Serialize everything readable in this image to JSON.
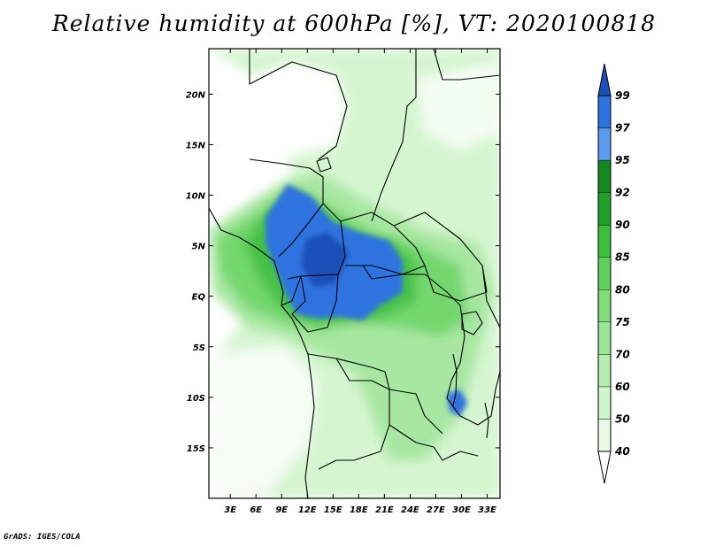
{
  "title": "Relative humidity at 600hPa [%], VT: 2020100818",
  "credit": "GrADS: IGES/COLA",
  "map": {
    "lat_ticks": [
      "20N",
      "15N",
      "10N",
      "5N",
      "EQ",
      "5S",
      "10S",
      "15S"
    ],
    "lat_values": [
      20,
      15,
      10,
      5,
      0,
      -5,
      -10,
      -15
    ],
    "lon_ticks": [
      "3E",
      "6E",
      "9E",
      "12E",
      "15E",
      "18E",
      "21E",
      "24E",
      "27E",
      "30E",
      "33E"
    ],
    "lon_values": [
      3,
      6,
      9,
      12,
      15,
      18,
      21,
      24,
      27,
      30,
      33
    ],
    "lon_range": [
      0.5,
      34.5
    ],
    "lat_range": [
      -20,
      24.5
    ]
  },
  "colorbar": {
    "labels": [
      "40",
      "50",
      "60",
      "70",
      "75",
      "80",
      "85",
      "90",
      "92",
      "95",
      "97",
      "99"
    ],
    "colors": [
      "#ffffff",
      "#e8fbe6",
      "#cff5cb",
      "#b4edaf",
      "#9be596",
      "#7fdc78",
      "#5fd15a",
      "#3ebe3d",
      "#1fa22a",
      "#13881f",
      "#5a9df0",
      "#2d73e0",
      "#1a4fb8"
    ]
  },
  "colors": {
    "ocean": "#ffffff",
    "land_dry": "#f3fdf2",
    "moist_low": "#c3f1bd",
    "moist_mid": "#7fdc78",
    "moist_high": "#3ebe3d",
    "saturated": "#2d73e0",
    "saturated_dark": "#1a4fb8"
  }
}
